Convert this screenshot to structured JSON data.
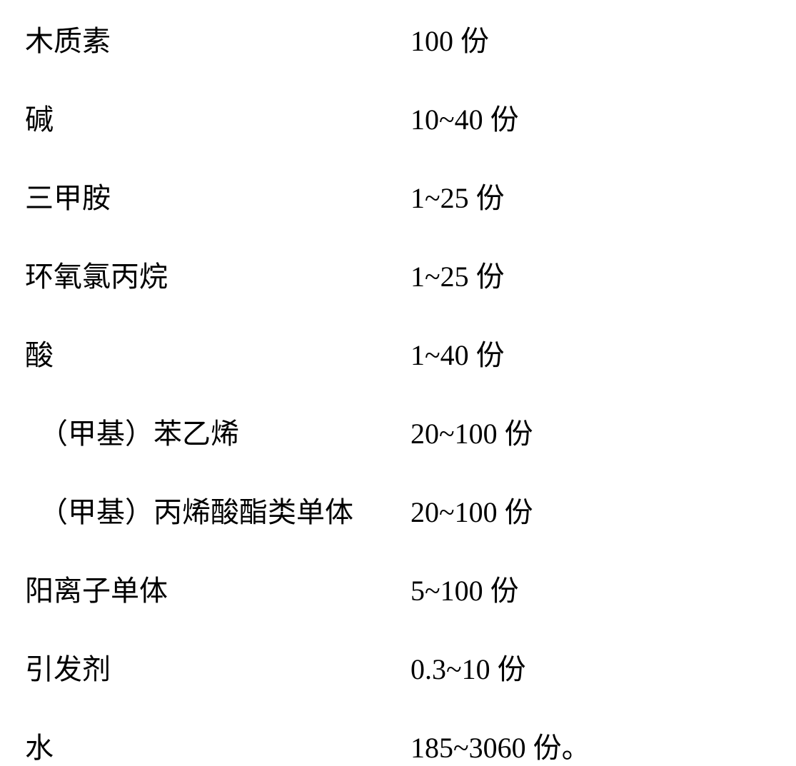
{
  "table": {
    "type": "table",
    "background_color": "#ffffff",
    "text_color": "#000000",
    "font_size": 40,
    "font_family": "SimSun",
    "row_gap": 52,
    "name_column_width": 540,
    "rows": [
      {
        "name": "木质素",
        "amount": "100 份",
        "indented": false
      },
      {
        "name": "碱",
        "amount": "10~40 份",
        "indented": false
      },
      {
        "name": "三甲胺",
        "amount": "1~25 份",
        "indented": false
      },
      {
        "name": "环氧氯丙烷",
        "amount": "1~25 份",
        "indented": false
      },
      {
        "name": "酸",
        "amount": "1~40 份",
        "indented": false
      },
      {
        "name": "（甲基）苯乙烯",
        "amount": "20~100 份",
        "indented": true
      },
      {
        "name": "（甲基）丙烯酸酯类单体",
        "amount": "20~100 份",
        "indented": true
      },
      {
        "name": "阳离子单体",
        "amount": "5~100 份",
        "indented": false
      },
      {
        "name": "引发剂",
        "amount": "0.3~10 份",
        "indented": false
      },
      {
        "name": "水",
        "amount": "185~3060 份。",
        "indented": false
      }
    ]
  }
}
